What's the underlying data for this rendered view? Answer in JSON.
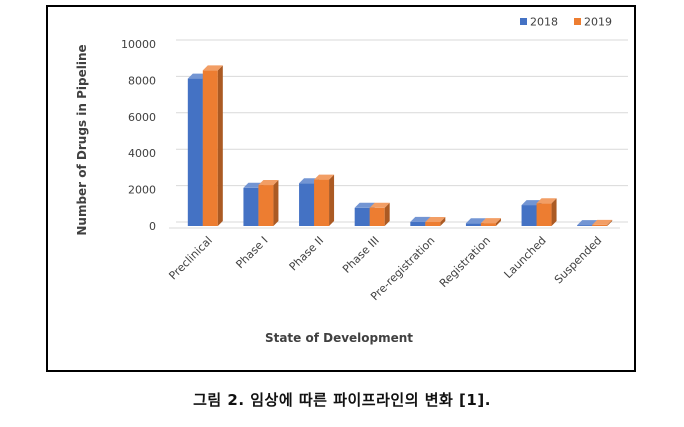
{
  "chart_data": {
    "type": "bar",
    "title": "",
    "xlabel": "State of Development",
    "ylabel": "Number of Drugs in Pipeline",
    "ylim": [
      0,
      10000
    ],
    "yticks": [
      "0",
      "2000",
      "4000",
      "6000",
      "8000",
      "10000"
    ],
    "grid": true,
    "legend_position": "top-right",
    "bar_style": "3d",
    "categories": [
      "Preclinical",
      "Phase I",
      "Phase II",
      "Phase III",
      "Pre-registration",
      "Registration",
      "Launched",
      "Suspended"
    ],
    "series": [
      {
        "name": "2018",
        "color": "#4472C4",
        "values": [
          8100,
          2100,
          2350,
          1000,
          230,
          150,
          1150,
          50
        ]
      },
      {
        "name": "2019",
        "color": "#ED7D31",
        "values": [
          8550,
          2250,
          2550,
          1000,
          220,
          160,
          1250,
          60
        ]
      }
    ]
  },
  "caption": "그림 2. 임상에 따른 파이프라인의 변화 [1]."
}
